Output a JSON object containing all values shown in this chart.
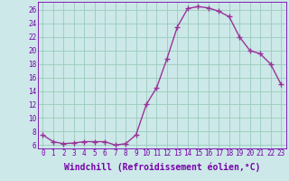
{
  "x": [
    0,
    1,
    2,
    3,
    4,
    5,
    6,
    7,
    8,
    9,
    10,
    11,
    12,
    13,
    14,
    15,
    16,
    17,
    18,
    19,
    20,
    21,
    22,
    23
  ],
  "y": [
    7.5,
    6.5,
    6.2,
    6.3,
    6.5,
    6.5,
    6.5,
    6.0,
    6.2,
    7.5,
    12.0,
    14.5,
    18.8,
    23.5,
    26.2,
    26.5,
    26.3,
    25.8,
    25.0,
    22.0,
    20.0,
    19.5,
    18.0,
    15.0
  ],
  "line_color": "#993399",
  "marker": "+",
  "marker_size": 4,
  "bg_color": "#cce8e8",
  "grid_color": "#99ccbb",
  "xlabel": "Windchill (Refroidissement éolien,°C)",
  "ylabel_ticks": [
    6,
    8,
    10,
    12,
    14,
    16,
    18,
    20,
    22,
    24,
    26
  ],
  "ylim": [
    5.5,
    27.2
  ],
  "xlim": [
    -0.5,
    23.5
  ],
  "xtick_labels": [
    "0",
    "1",
    "2",
    "3",
    "4",
    "5",
    "6",
    "7",
    "8",
    "9",
    "10",
    "11",
    "12",
    "13",
    "14",
    "15",
    "16",
    "17",
    "18",
    "19",
    "20",
    "21",
    "22",
    "23"
  ],
  "tick_color": "#7700aa",
  "tick_fontsize": 5.5,
  "label_fontsize": 7.0
}
